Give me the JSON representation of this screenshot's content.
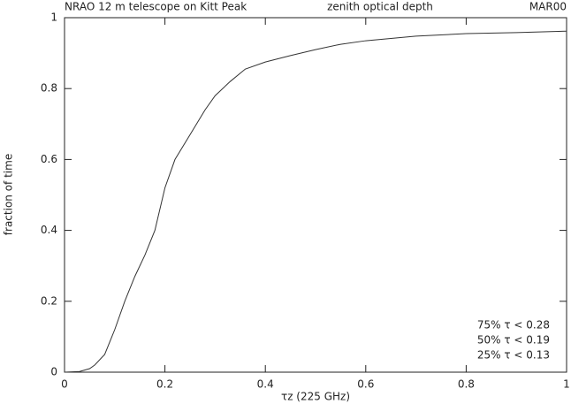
{
  "chart_data": {
    "type": "line",
    "title_left": "NRAO 12 m telescope on Kitt Peak",
    "title_center": "zenith optical depth",
    "title_right": "MAR00",
    "xlabel": "τz (225 GHz)",
    "ylabel": "fraction of time",
    "annotations": [
      "75% τ < 0.28",
      "50% τ < 0.19",
      "25% τ < 0.13"
    ],
    "x": [
      0,
      0.03,
      0.05,
      0.06,
      0.08,
      0.1,
      0.12,
      0.14,
      0.16,
      0.18,
      0.2,
      0.22,
      0.25,
      0.28,
      0.3,
      0.33,
      0.36,
      0.4,
      0.45,
      0.5,
      0.55,
      0.6,
      0.7,
      0.8,
      0.9,
      1
    ],
    "series": [
      {
        "color": "#333333",
        "values": [
          0,
          0.002,
          0.01,
          0.02,
          0.05,
          0.12,
          0.2,
          0.27,
          0.33,
          0.4,
          0.52,
          0.6,
          0.67,
          0.74,
          0.78,
          0.82,
          0.855,
          0.875,
          0.893,
          0.91,
          0.925,
          0.935,
          0.948,
          0.955,
          0.958,
          0.962
        ]
      }
    ],
    "xlim": [
      0,
      1
    ],
    "ylim": [
      0,
      1
    ],
    "xticks": [
      0,
      0.2,
      0.4,
      0.6,
      0.8,
      1
    ],
    "yticks": [
      0,
      0.2,
      0.4,
      0.6,
      0.8,
      1
    ]
  }
}
